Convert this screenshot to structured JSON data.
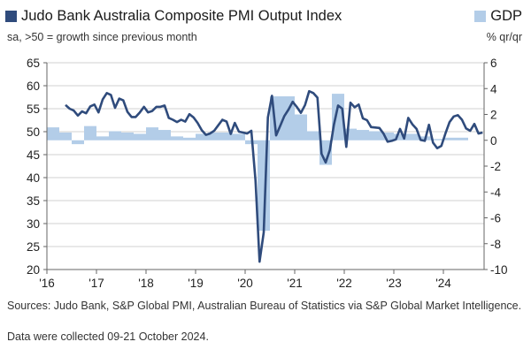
{
  "chart_data": {
    "type": "line+bar",
    "title": "Judo Bank Australia Composite PMI Output Index",
    "subtitle": "sa, >50 = growth since previous month",
    "right_axis_label": "% qr/qr",
    "colors": {
      "pmi": "#2f4b7c",
      "gdp": "#b3cde8",
      "grid": "#d0d0d0"
    },
    "x_tick_labels": [
      "'16",
      "'17",
      "'18",
      "'19",
      "'20",
      "'21",
      "'22",
      "'23",
      "'24"
    ],
    "left_axis": {
      "ylim": [
        20,
        65
      ],
      "ticks": [
        "20",
        "25",
        "30",
        "35",
        "40",
        "45",
        "50",
        "55",
        "60",
        "65"
      ]
    },
    "right_axis": {
      "ylim": [
        -10,
        6
      ],
      "ticks": [
        "-10",
        "-8",
        "-6",
        "-4",
        "-2",
        "0",
        "2",
        "4",
        "6"
      ]
    },
    "grid": true,
    "series": [
      {
        "name": "Judo Bank Australia Composite PMI Output Index",
        "type": "line",
        "axis": "left",
        "frequency": "monthly",
        "start": "2016-05",
        "values": [
          55.8,
          55.0,
          54.6,
          53.5,
          54.4,
          54.0,
          55.5,
          55.9,
          54.2,
          57.0,
          58.4,
          58.0,
          55.2,
          57.2,
          56.8,
          54.3,
          53.2,
          53.2,
          54.2,
          55.4,
          54.2,
          54.5,
          55.4,
          55.4,
          55.7,
          53.0,
          52.6,
          52.1,
          52.6,
          52.2,
          53.8,
          53.1,
          51.9,
          50.3,
          49.3,
          49.6,
          50.2,
          51.4,
          52.6,
          52.2,
          49.5,
          51.9,
          50.0,
          49.8,
          49.6,
          50.2,
          39.4,
          21.7,
          28.1,
          53.1,
          57.8,
          49.2,
          51.3,
          53.4,
          54.8,
          56.5,
          55.4,
          54.1,
          55.8,
          58.8,
          58.4,
          57.4,
          45.2,
          43.3,
          46.0,
          51.5,
          55.7,
          55.0,
          46.7,
          56.3,
          55.3,
          55.9,
          52.9,
          52.5,
          51.0,
          50.9,
          50.8,
          49.6,
          47.8,
          48.0,
          48.3,
          50.6,
          48.5,
          53.0,
          51.6,
          50.6,
          48.2,
          48.0,
          51.5,
          47.6,
          46.4,
          46.9,
          49.6,
          52.1,
          53.3,
          53.6,
          52.6,
          50.7,
          50.2,
          51.7,
          49.6,
          49.8
        ]
      },
      {
        "name": "GDP",
        "type": "bar",
        "axis": "right",
        "frequency": "quarterly",
        "start": "2016-Q1",
        "values": [
          1.0,
          0.6,
          -0.3,
          1.1,
          0.3,
          0.7,
          0.6,
          0.5,
          1.0,
          0.8,
          0.3,
          0.2,
          0.5,
          0.6,
          0.6,
          0.5,
          -0.3,
          -7.0,
          3.4,
          3.4,
          2.0,
          0.7,
          -1.9,
          3.6,
          0.9,
          0.8,
          0.7,
          0.6,
          0.5,
          0.5,
          0.3,
          0.1,
          0.2,
          0.2
        ]
      }
    ]
  },
  "legend": {
    "pmi_label": "Judo Bank Australia Composite PMI Output Index",
    "gdp_label": "GDP"
  },
  "footer": {
    "sources": "Sources: Judo Bank, S&P Global PMI, Australian Bureau of Statistics via S&P Global Market Intelligence.",
    "collected": "Data were collected 09-21 October 2024."
  }
}
